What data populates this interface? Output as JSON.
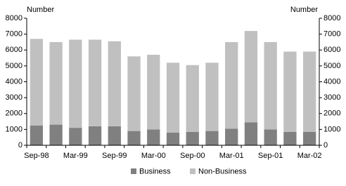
{
  "chart_data": {
    "type": "stacked_bar",
    "y_label": "Number",
    "y2_label": "Number",
    "categories": [
      "Sep-98",
      null,
      "Mar-99",
      null,
      "Sep-99",
      null,
      "Mar-00",
      null,
      "Sep-00",
      null,
      "Mar-01",
      null,
      "Sep-01",
      null,
      "Mar-02"
    ],
    "series": [
      {
        "name": "Business",
        "color": "#808080",
        "values": [
          1250,
          1300,
          1100,
          1200,
          1200,
          900,
          1000,
          800,
          850,
          900,
          1050,
          1450,
          1000,
          850,
          850
        ]
      },
      {
        "name": "Non-Business",
        "color": "#c0c0c0",
        "values": [
          5450,
          5200,
          5550,
          5450,
          5350,
          4700,
          4700,
          4400,
          4200,
          4300,
          5450,
          5750,
          5500,
          5050,
          5050
        ]
      }
    ],
    "ylim": [
      0,
      8000
    ],
    "yticks": [
      0,
      1000,
      2000,
      3000,
      4000,
      5000,
      6000,
      7000,
      8000
    ],
    "y2lim": [
      0,
      8000
    ],
    "y2ticks": [
      0,
      1000,
      2000,
      3000,
      4000,
      5000,
      6000,
      7000,
      8000
    ],
    "legend": "bottom"
  }
}
